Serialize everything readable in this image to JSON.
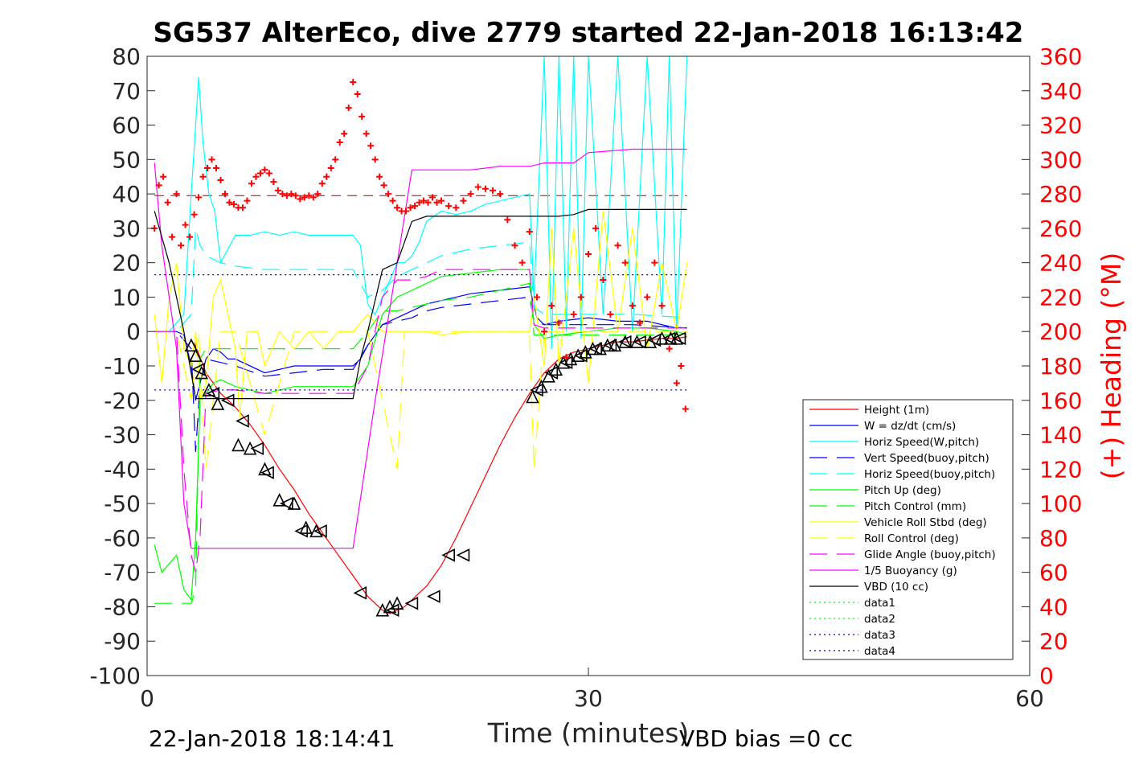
{
  "chart_data": {
    "type": "line",
    "title": "SG537 AlterEco, dive 2779 started 22-Jan-2018 16:13:42",
    "xlabel": "Time (minutes)",
    "ylabel": "",
    "y2label": "(+) Heading (°M)",
    "xlim": [
      0,
      60
    ],
    "ylim": [
      -100,
      80
    ],
    "y2lim": [
      0,
      360
    ],
    "xticks": [
      "0",
      "30",
      "60"
    ],
    "yticks": [
      "80",
      "70",
      "60",
      "50",
      "40",
      "30",
      "20",
      "10",
      "0",
      "-10",
      "-20",
      "-30",
      "-40",
      "-50",
      "-60",
      "-70",
      "-80",
      "-90",
      "-100"
    ],
    "y2ticks": [
      "360",
      "340",
      "320",
      "300",
      "280",
      "260",
      "240",
      "220",
      "200",
      "180",
      "160",
      "140",
      "120",
      "100",
      "80",
      "60",
      "40",
      "20",
      "0"
    ],
    "footer_left": "22-Jan-2018 18:14:41",
    "footer_right": "VBD bias =0 cc",
    "legend_position": "lower-right",
    "colors": {
      "height": "#ff0000",
      "w": "#0000ff",
      "horiz": "#00ffff",
      "vert_buoy": "#0000ff",
      "horiz_buoy": "#00ffff",
      "pitch": "#00ff00",
      "pitch_ctrl": "#00ff00",
      "roll": "#ffff00",
      "roll_ctrl": "#ffff00",
      "glide": "#ff00ff",
      "buoy": "#ff00ff",
      "vbd": "#000000",
      "heading": "#ff0000"
    },
    "series": [
      {
        "name": "Height (1m)",
        "style": "solid",
        "color": "#ff0000",
        "x": [
          3.2,
          4,
          5,
          6,
          7,
          8,
          9,
          10,
          11,
          12,
          13,
          14,
          15,
          15.5,
          16,
          16.5,
          17,
          17.5,
          18,
          18.5,
          19,
          20,
          21,
          22,
          23,
          24,
          25,
          26,
          26.5,
          27,
          27.5,
          28,
          29,
          30,
          31,
          32,
          33,
          34,
          35,
          36,
          36.7
        ],
        "y": [
          -3,
          -12,
          -18,
          -22,
          -27,
          -33,
          -40,
          -46,
          -53,
          -59,
          -65,
          -71,
          -77,
          -79,
          -81,
          -82,
          -81,
          -80,
          -78,
          -76,
          -74,
          -68,
          -60,
          -51,
          -42,
          -33,
          -25,
          -18,
          -15,
          -12,
          -10,
          -8,
          -6,
          -5,
          -4,
          -3,
          -3,
          -2.5,
          -2,
          -2,
          -1.5
        ]
      },
      {
        "name": "W = dz/dt (cm/s)",
        "style": "solid",
        "color": "#0000ff",
        "x": [
          0.5,
          1,
          2,
          2.5,
          3,
          3.3,
          3.6,
          4,
          4.5,
          5,
          5.5,
          6,
          8,
          10,
          12,
          14,
          14.5,
          15,
          16,
          17,
          18,
          19,
          20,
          22,
          24,
          26,
          26.5,
          27,
          28,
          30,
          32,
          34,
          35,
          36,
          36.7
        ],
        "y": [
          0,
          0,
          0,
          -1,
          -10,
          -20,
          -15,
          -8,
          -5,
          -6,
          -8,
          -8,
          -12,
          -10,
          -10,
          -10,
          -8,
          -4,
          2,
          4,
          6,
          8,
          9,
          11,
          12,
          13,
          4,
          2,
          3,
          4,
          3,
          3,
          2,
          1,
          1
        ]
      },
      {
        "name": "Horiz Speed(W,pitch)",
        "style": "solid",
        "color": "#00ffff",
        "x": [
          0.5,
          1.5,
          2.5,
          3,
          3.3,
          3.5,
          3.8,
          4.2,
          4.6,
          5,
          6,
          7,
          8,
          9,
          10,
          11,
          12,
          13,
          14,
          14.5,
          15,
          15.5,
          16,
          16.5,
          17,
          17.5,
          18,
          18.5,
          19,
          20,
          21,
          22,
          23,
          24,
          25,
          26,
          26.3,
          27,
          27.5,
          28,
          28.5,
          29,
          29.5,
          30,
          31,
          32,
          33,
          34,
          35,
          35.5,
          36,
          36.7
        ],
        "y": [
          0,
          0,
          5,
          40,
          60,
          74,
          55,
          40,
          35,
          20,
          28,
          28,
          29,
          28,
          29,
          28,
          28,
          28,
          28,
          25,
          8,
          5,
          10,
          15,
          20,
          20,
          22,
          26,
          32,
          35,
          34,
          35,
          37,
          38,
          39,
          40,
          10,
          80,
          -5,
          80,
          0,
          80,
          -2,
          80,
          5,
          80,
          0,
          80,
          5,
          80,
          0,
          80
        ]
      },
      {
        "name": "Vert Speed(buoy,pitch)",
        "style": "dashed",
        "color": "#0000ff",
        "x": [
          0.5,
          2,
          3,
          3.3,
          3.6,
          4,
          5,
          6,
          8,
          10,
          12,
          14,
          15,
          16,
          17,
          18,
          19,
          20,
          22,
          24,
          26,
          26.3,
          27,
          30,
          33,
          36.7
        ],
        "y": [
          0,
          0,
          -5,
          -35,
          -15,
          -8,
          -9,
          -10,
          -13,
          -12,
          -11,
          -11,
          -4,
          2,
          3,
          4,
          6,
          7,
          8,
          9,
          10,
          3,
          2,
          2,
          2,
          1
        ]
      },
      {
        "name": "Horiz Speed(buoy,pitch)",
        "style": "dashed",
        "color": "#00ffff",
        "x": [
          0.5,
          2,
          3,
          3.3,
          3.6,
          4,
          5,
          6,
          8,
          10,
          12,
          14,
          15,
          16,
          17,
          18,
          19,
          20,
          22,
          24,
          26,
          26.3,
          27,
          30,
          33,
          36.7
        ],
        "y": [
          0,
          0,
          5,
          30,
          25,
          22,
          20,
          19,
          18,
          18,
          18,
          18,
          10,
          12,
          16,
          18,
          20,
          22,
          24,
          25,
          26,
          7,
          5,
          5,
          5,
          4
        ]
      },
      {
        "name": "Pitch Up (deg)",
        "style": "solid",
        "color": "#00ff00",
        "x": [
          0.5,
          1,
          2,
          2.5,
          3,
          3.3,
          3.6,
          4,
          4.5,
          5,
          6,
          8,
          10,
          12,
          14,
          15,
          16,
          17,
          18,
          19,
          20,
          22,
          24,
          26,
          26.3,
          27,
          28,
          30,
          32,
          34,
          36,
          36.7
        ],
        "y": [
          -62,
          -70,
          -65,
          -75,
          -78,
          -60,
          -20,
          -18,
          -15,
          -14,
          -16,
          -18,
          -16,
          -16,
          -16,
          -10,
          5,
          10,
          12,
          14,
          16,
          17,
          18,
          18,
          2,
          -2,
          -1,
          0,
          1,
          1,
          0,
          -1
        ]
      },
      {
        "name": "Pitch Control (mm)",
        "style": "dashed",
        "color": "#00ff00",
        "x": [
          0.5,
          2,
          3,
          3.3,
          3.6,
          4,
          5,
          6,
          8,
          10,
          12,
          14,
          15,
          16,
          17,
          18,
          19,
          20,
          22,
          24,
          26,
          26.3,
          27,
          30,
          33,
          36.7
        ],
        "y": [
          -79,
          -79,
          -79,
          -75,
          -8,
          -5,
          -5,
          -5,
          -5,
          -5,
          -5,
          -5,
          0,
          6,
          6,
          7,
          8,
          9,
          10,
          12,
          14,
          -1,
          -1,
          -1,
          -1,
          -1
        ]
      },
      {
        "name": "Vehicle Roll Stbd (deg)",
        "style": "solid",
        "color": "#ffff00",
        "x": [
          0.5,
          1,
          1.5,
          2,
          2.5,
          3,
          3.3,
          3.6,
          4,
          4.5,
          5,
          5.5,
          6,
          6.3,
          6.8,
          7.5,
          8,
          9,
          10,
          11,
          12,
          13,
          14,
          15,
          16,
          17,
          18,
          19,
          20,
          22,
          24,
          26,
          26.3,
          27,
          27.5,
          28,
          29,
          30,
          31,
          32,
          33,
          34,
          35,
          36,
          36.7
        ],
        "y": [
          5,
          -15,
          10,
          20,
          -5,
          -10,
          0,
          -20,
          -15,
          10,
          15,
          5,
          -5,
          -25,
          0,
          0,
          -10,
          0,
          -5,
          0,
          -5,
          0,
          0,
          5,
          0,
          0,
          0,
          0,
          -1,
          0,
          0,
          0,
          10,
          -10,
          30,
          -10,
          30,
          -15,
          35,
          0,
          30,
          -5,
          20,
          0,
          20
        ]
      },
      {
        "name": "Roll Control (deg)",
        "style": "dashed",
        "color": "#ffff00",
        "x": [
          0.5,
          2,
          3,
          3.5,
          4,
          5,
          6,
          8,
          10,
          12,
          14,
          15,
          16,
          17,
          17.5,
          18,
          19,
          20,
          22,
          24,
          26,
          26.3,
          27,
          30,
          33,
          36.7
        ],
        "y": [
          0,
          0,
          -20,
          0,
          -40,
          0,
          0,
          -30,
          0,
          0,
          0,
          0,
          -20,
          -40,
          0,
          0,
          0,
          0,
          0,
          0,
          0,
          -40,
          0,
          0,
          0,
          0
        ]
      },
      {
        "name": "Glide Angle (buoy,pitch)",
        "style": "dashed",
        "color": "#ff00ff",
        "x": [
          0.5,
          2,
          2.5,
          3,
          3.3,
          3.6,
          4,
          5,
          6,
          8,
          10,
          12,
          14,
          15,
          16,
          17,
          18,
          19,
          20,
          22,
          24,
          26,
          26.3,
          27,
          30,
          33,
          36.7
        ],
        "y": [
          0,
          0,
          -40,
          -65,
          -70,
          -60,
          -18,
          -17,
          -17,
          -18,
          -18,
          -18,
          -18,
          -10,
          10,
          15,
          15,
          16,
          18,
          18,
          18,
          18,
          2,
          1,
          1,
          1,
          1
        ]
      },
      {
        "name": "1/5 Buoyancy (g)",
        "style": "solid",
        "color": "#ff00ff",
        "x": [
          0.5,
          1,
          2,
          2.5,
          3,
          3.5,
          5,
          10,
          14,
          15.5,
          17,
          18,
          19,
          20,
          22,
          24,
          26,
          27,
          29,
          30,
          33,
          36.7
        ],
        "y": [
          49,
          25,
          -5,
          -50,
          -63,
          -63,
          -63,
          -63,
          -63,
          -20,
          20,
          47,
          47,
          47,
          47,
          48,
          48,
          49,
          49,
          52,
          53,
          53
        ]
      },
      {
        "name": "VBD (10 cc)",
        "style": "solid",
        "color": "#000000",
        "x": [
          0.5,
          1.5,
          2.5,
          3.3,
          4,
          10,
          14,
          14.5,
          15,
          16,
          17,
          18,
          19,
          20,
          22,
          24,
          26,
          28,
          29,
          30,
          33,
          36.7
        ],
        "y": [
          35,
          20,
          0,
          -19.5,
          -19.5,
          -19.5,
          -19.5,
          -8,
          0,
          18,
          20,
          32,
          33.5,
          33.5,
          33.5,
          33.5,
          33.5,
          33.5,
          34,
          35.5,
          35.5,
          35.5
        ]
      },
      {
        "name": "data1",
        "style": "dotted",
        "color": "#00ff00",
        "x": [
          0,
          0
        ],
        "y": [
          0,
          0
        ]
      },
      {
        "name": "data2",
        "style": "dotted",
        "color": "#00ff00",
        "x": [
          0,
          0
        ],
        "y": [
          0,
          0
        ]
      },
      {
        "name": "data3",
        "style": "dotted",
        "color": "#0000aa",
        "x": [
          0.5,
          36.7
        ],
        "y": [
          16.5,
          16.5
        ]
      },
      {
        "name": "data4",
        "style": "dotted",
        "color": "#0000aa",
        "x": [
          0.5,
          36.7
        ],
        "y": [
          -17,
          -17
        ]
      }
    ],
    "heading_reference": 279,
    "heading_points": {
      "x": [
        0.5,
        0.8,
        1.1,
        1.4,
        1.7,
        2.0,
        2.3,
        2.6,
        2.9,
        3.2,
        3.5,
        3.8,
        4.1,
        4.4,
        4.7,
        5.0,
        5.3,
        5.6,
        5.9,
        6.2,
        6.5,
        6.8,
        7.1,
        7.4,
        7.7,
        8.0,
        8.3,
        8.6,
        8.9,
        9.2,
        9.5,
        9.8,
        10.1,
        10.4,
        10.7,
        11.0,
        11.3,
        11.6,
        11.9,
        12.2,
        12.5,
        12.8,
        13.1,
        13.4,
        13.7,
        14.0,
        14.3,
        14.6,
        14.9,
        15.2,
        15.5,
        15.8,
        16.1,
        16.4,
        16.7,
        17.0,
        17.3,
        17.6,
        17.9,
        18.2,
        18.5,
        18.8,
        19.1,
        19.4,
        19.7,
        20.0,
        20.5,
        21.0,
        21.5,
        22.0,
        22.5,
        23.0,
        23.5,
        24.0,
        24.5,
        25.0,
        25.5,
        26.0,
        26.5,
        27.0,
        27.5,
        28.0,
        28.5,
        29.0,
        29.5,
        30.0,
        30.5,
        31.0,
        31.5,
        32.0,
        32.5,
        33.0,
        33.5,
        34.0,
        34.5,
        35.0,
        35.5,
        36.0,
        36.3,
        36.6
      ],
      "y": [
        260,
        285,
        290,
        275,
        255,
        280,
        250,
        262,
        255,
        268,
        278,
        290,
        295,
        300,
        295,
        288,
        280,
        275,
        274,
        272,
        272,
        276,
        286,
        290,
        292,
        294,
        292,
        287,
        282,
        280,
        279,
        280,
        279,
        277,
        278,
        279,
        278,
        280,
        286,
        290,
        295,
        300,
        310,
        315,
        330,
        345,
        338,
        325,
        315,
        308,
        300,
        290,
        285,
        280,
        276,
        272,
        270,
        270,
        272,
        273,
        275,
        276,
        275,
        278,
        275,
        276,
        273,
        272,
        276,
        280,
        284,
        283,
        282,
        280,
        265,
        250,
        240,
        258,
        220,
        200,
        215,
        205,
        185,
        210,
        220,
        245,
        260,
        230,
        210,
        250,
        240,
        215,
        205,
        220,
        240,
        215,
        190,
        170,
        180,
        155
      ]
    },
    "markers_right": {
      "x": [
        3.5,
        4.5,
        5.5,
        6.5,
        7.5,
        8.2,
        9.5,
        10.5,
        11.8,
        14.5,
        16.7,
        18,
        19.5,
        20.5,
        21.5,
        26.5,
        27.5,
        28.5,
        29.5,
        30.5,
        31.5,
        32.5,
        33.5,
        34.5,
        35.5,
        36.2
      ],
      "y": [
        -11,
        -18,
        -20,
        -26,
        -34,
        -41,
        -50,
        -58,
        -58,
        -76,
        -81,
        -79,
        -77,
        -65,
        -65,
        -17,
        -12,
        -9,
        -7,
        -5,
        -4,
        -3,
        -3,
        -2.5,
        -2,
        -2
      ]
    },
    "markers_up": {
      "x": [
        3,
        3.3,
        3.7,
        4.2,
        4.8,
        6.2,
        7,
        8,
        9,
        10,
        10.8,
        11.5,
        16,
        16.5,
        17,
        26.2,
        26.8,
        27.3,
        27.8,
        28.3,
        28.8,
        29.3,
        29.8,
        30.3,
        30.8,
        31.3,
        31.8,
        32.5,
        33.3,
        34.2,
        35,
        35.6,
        36
      ],
      "y": [
        -4,
        -7,
        -12,
        -17,
        -21,
        -33,
        -34,
        -40,
        -49,
        -50,
        -57,
        -58,
        -81,
        -80,
        -79,
        -19,
        -16,
        -13,
        -11,
        -9,
        -8,
        -7,
        -6,
        -5,
        -5,
        -4,
        -4,
        -3,
        -3,
        -3,
        -2,
        -2,
        -2
      ]
    }
  }
}
